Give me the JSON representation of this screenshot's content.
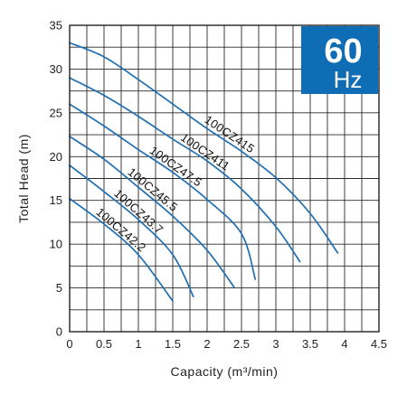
{
  "chart_data": {
    "type": "line",
    "title": "",
    "xlabel": "Capacity (m³/min)",
    "ylabel": "Total Head (m)",
    "xlim": [
      0,
      4.5
    ],
    "ylim": [
      0,
      35
    ],
    "x_ticks": [
      "0",
      "0.5",
      "1",
      "1.5",
      "2",
      "2.5",
      "3",
      "3.5",
      "4",
      "4.5"
    ],
    "y_ticks": [
      "0",
      "5",
      "10",
      "15",
      "20",
      "25",
      "30",
      "35"
    ],
    "grid": true,
    "line_color": "#1f6fb2",
    "badge": {
      "big": "60",
      "small": "Hz",
      "color": "#0f6db6"
    },
    "series": [
      {
        "name": "100CZ415",
        "points": [
          [
            0,
            33.0
          ],
          [
            0.5,
            31.4
          ],
          [
            1.0,
            28.8
          ],
          [
            1.5,
            26.0
          ],
          [
            2.0,
            23.2
          ],
          [
            2.5,
            20.6
          ],
          [
            3.0,
            17.6
          ],
          [
            3.5,
            13.5
          ],
          [
            3.9,
            9.0
          ]
        ]
      },
      {
        "name": "100CZ411",
        "points": [
          [
            0,
            29.0
          ],
          [
            0.5,
            27.0
          ],
          [
            1.0,
            24.6
          ],
          [
            1.5,
            22.0
          ],
          [
            2.0,
            19.5
          ],
          [
            2.5,
            16.3
          ],
          [
            3.0,
            12.0
          ],
          [
            3.35,
            8.0
          ]
        ]
      },
      {
        "name": "100CZ47.5",
        "points": [
          [
            0,
            26.0
          ],
          [
            0.5,
            23.5
          ],
          [
            1.0,
            20.8
          ],
          [
            1.5,
            18.2
          ],
          [
            2.0,
            15.1
          ],
          [
            2.5,
            11.2
          ],
          [
            2.7,
            6.0
          ]
        ]
      },
      {
        "name": "100CZ45.5",
        "points": [
          [
            0,
            22.3
          ],
          [
            0.5,
            19.7
          ],
          [
            1.0,
            16.5
          ],
          [
            1.5,
            13.2
          ],
          [
            2.0,
            9.3
          ],
          [
            2.4,
            5.0
          ]
        ]
      },
      {
        "name": "100CZ43.7",
        "points": [
          [
            0,
            19.0
          ],
          [
            0.5,
            16.0
          ],
          [
            1.0,
            12.8
          ],
          [
            1.5,
            8.8
          ],
          [
            1.8,
            4.0
          ]
        ]
      },
      {
        "name": "100CZ42.2",
        "points": [
          [
            0,
            15.2
          ],
          [
            0.5,
            12.3
          ],
          [
            1.0,
            8.8
          ],
          [
            1.5,
            3.5
          ]
        ]
      }
    ]
  }
}
